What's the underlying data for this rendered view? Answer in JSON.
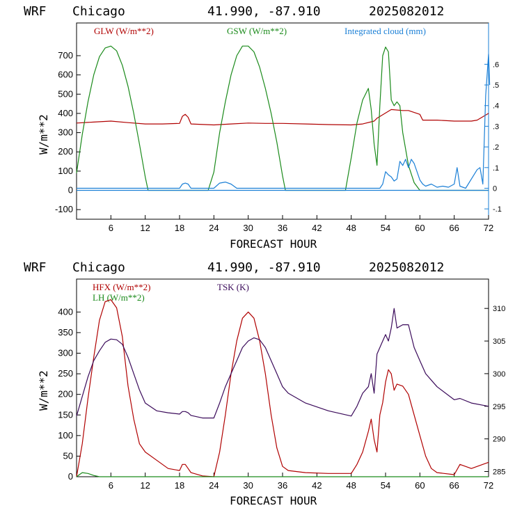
{
  "panels": [
    {
      "header": {
        "model": "WRF",
        "station": "Chicago",
        "coords": "41.990, -87.910",
        "init": "2025082012"
      },
      "legend": [
        {
          "label": "GLW (W/m**2)",
          "color": "#b00000"
        },
        {
          "label": "GSW (W/m**2)",
          "color": "#1a8a1a"
        },
        {
          "label": "Integrated cloud (mm)",
          "color": "#1a7fd6"
        }
      ],
      "xlabel": "FORECAST HOUR",
      "ylabel": "W/m**2",
      "xticks": [
        "6",
        "12",
        "18",
        "24",
        "30",
        "36",
        "42",
        "48",
        "54",
        "60",
        "66",
        "72"
      ],
      "yticks_left": [
        "-100",
        "0",
        "100",
        "200",
        "300",
        "400",
        "500",
        "600",
        "700"
      ],
      "yticks_right": [
        "-.1",
        "0",
        ".1",
        ".2",
        ".3",
        ".4",
        ".5",
        ".6"
      ]
    },
    {
      "header": {
        "model": "WRF",
        "station": "Chicago",
        "coords": "41.990, -87.910",
        "init": "2025082012"
      },
      "legend": [
        {
          "label": "HFX (W/m**2)",
          "color": "#b00000"
        },
        {
          "label": "LH  (W/m**2)",
          "color": "#1a8a1a"
        },
        {
          "label": "TSK (K)",
          "color": "#3a0a5a"
        }
      ],
      "xlabel": "FORECAST HOUR",
      "ylabel": "W/m**2",
      "xticks": [
        "6",
        "12",
        "18",
        "24",
        "30",
        "36",
        "42",
        "48",
        "54",
        "60",
        "66",
        "72"
      ],
      "yticks_left": [
        "0",
        "50",
        "100",
        "150",
        "200",
        "250",
        "300",
        "350",
        "400"
      ],
      "yticks_right": [
        "285",
        "290",
        "295",
        "300",
        "305",
        "310"
      ]
    }
  ],
  "chart_data": [
    {
      "type": "line",
      "xlim": [
        0,
        72
      ],
      "ylim": [
        -150,
        870
      ],
      "y2lim": [
        -0.15,
        0.8
      ],
      "series": [
        {
          "name": "GLW (W/m**2)",
          "axis": "left",
          "color": "#b00000",
          "x": [
            0,
            3,
            6,
            9,
            12,
            15,
            18,
            18.5,
            19,
            19.5,
            20,
            24,
            27,
            30,
            33,
            36,
            40,
            44,
            48,
            50,
            52,
            52.5,
            55,
            57,
            58,
            60,
            60.5,
            63,
            66,
            69,
            70,
            72
          ],
          "y": [
            350,
            355,
            360,
            352,
            345,
            345,
            348,
            385,
            395,
            380,
            345,
            340,
            345,
            350,
            348,
            348,
            345,
            342,
            340,
            345,
            360,
            375,
            420,
            415,
            415,
            395,
            365,
            365,
            360,
            360,
            365,
            400
          ]
        },
        {
          "name": "GSW (W/m**2)",
          "axis": "left",
          "color": "#1a8a1a",
          "x": [
            0,
            1,
            2,
            3,
            4,
            5,
            6,
            7,
            8,
            9,
            10,
            11,
            12,
            12.5,
            23,
            24,
            25,
            26,
            27,
            28,
            29,
            30,
            31,
            32,
            33,
            34,
            35,
            36,
            36.5,
            47,
            48,
            49,
            50,
            51,
            51.5,
            52,
            52.5,
            53,
            53.5,
            54,
            54.5,
            55,
            55.5,
            56,
            56.5,
            57,
            58,
            59,
            60,
            72
          ],
          "y": [
            90,
            290,
            460,
            600,
            695,
            740,
            750,
            725,
            650,
            540,
            400,
            240,
            70,
            0,
            0,
            95,
            300,
            460,
            600,
            700,
            750,
            750,
            720,
            640,
            530,
            400,
            250,
            75,
            0,
            0,
            170,
            350,
            470,
            530,
            420,
            240,
            130,
            440,
            700,
            745,
            720,
            470,
            440,
            460,
            440,
            300,
            130,
            40,
            0,
            0
          ]
        },
        {
          "name": "Integrated cloud (mm)",
          "axis": "right",
          "color": "#1a7fd6",
          "x": [
            0,
            18,
            18.5,
            19,
            19.5,
            20,
            24,
            25,
            26,
            27,
            28,
            53,
            53.5,
            54,
            54.5,
            55,
            55.5,
            56,
            56.5,
            57,
            57.5,
            58,
            58.5,
            59,
            59.5,
            60,
            60.5,
            61,
            62,
            63,
            64,
            65,
            66,
            66.5,
            67,
            67.5,
            68,
            70,
            70.5,
            71,
            71.5,
            72,
            72.2
          ],
          "y": [
            0,
            0,
            0.02,
            0.025,
            0.02,
            0,
            0,
            0.025,
            0.03,
            0.02,
            0,
            0,
            0.02,
            0.08,
            0.065,
            0.055,
            0.035,
            0.045,
            0.13,
            0.11,
            0.14,
            0.1,
            0.14,
            0.12,
            0.08,
            0.04,
            0.02,
            0.01,
            0.02,
            0.005,
            0.01,
            0.005,
            0.02,
            0.1,
            0.01,
            0.005,
            0,
            0.09,
            0.1,
            0.02,
            0.45,
            0.65,
            0.5
          ]
        }
      ]
    },
    {
      "type": "line",
      "xlim": [
        0,
        72
      ],
      "ylim": [
        0,
        480
      ],
      "y2lim": [
        284.2,
        314.5
      ],
      "series": [
        {
          "name": "HFX (W/m**2)",
          "axis": "left",
          "color": "#b00000",
          "x": [
            0,
            1,
            2,
            3,
            4,
            5,
            6,
            7,
            8,
            9,
            10,
            11,
            12,
            14,
            16,
            18,
            18.5,
            19,
            19.5,
            20,
            22,
            24,
            25,
            26,
            27,
            28,
            29,
            30,
            31,
            32,
            33,
            34,
            35,
            36,
            37,
            40,
            44,
            48,
            49,
            50,
            51,
            51.5,
            52,
            52.5,
            53,
            53.5,
            54,
            54.5,
            55,
            55.5,
            56,
            57,
            58,
            59,
            60,
            61,
            62,
            63,
            66,
            67,
            69,
            72
          ],
          "y": [
            0,
            80,
            190,
            290,
            380,
            425,
            430,
            410,
            340,
            220,
            140,
            80,
            60,
            40,
            20,
            15,
            30,
            30,
            20,
            10,
            2,
            0,
            60,
            150,
            250,
            330,
            385,
            400,
            385,
            330,
            250,
            150,
            70,
            25,
            15,
            10,
            8,
            8,
            30,
            60,
            110,
            140,
            90,
            60,
            150,
            180,
            230,
            260,
            250,
            210,
            225,
            220,
            200,
            150,
            100,
            50,
            20,
            10,
            5,
            30,
            20,
            35
          ]
        },
        {
          "name": "LH  (W/m**2)",
          "axis": "left",
          "color": "#1a8a1a",
          "x": [
            0,
            0.5,
            1,
            2,
            3,
            4,
            72
          ],
          "y": [
            0,
            5,
            10,
            8,
            3,
            0,
            0
          ]
        },
        {
          "name": "TSK (K)",
          "axis": "right",
          "color": "#3a0a5a",
          "x": [
            0,
            1,
            2,
            3,
            4,
            5,
            6,
            7,
            8,
            9,
            10,
            11,
            12,
            14,
            16,
            18,
            18.5,
            19,
            19.5,
            20,
            22,
            24,
            25,
            26,
            27,
            28,
            29,
            30,
            31,
            32,
            33,
            34,
            35,
            36,
            37,
            40,
            44,
            48,
            49,
            50,
            51,
            51.5,
            52,
            52.5,
            53,
            53.5,
            54,
            54.5,
            55,
            55.5,
            56,
            57,
            58,
            59,
            60,
            61,
            62,
            63,
            66,
            67,
            69,
            72
          ],
          "y": [
            293.5,
            296.5,
            299.5,
            302,
            303.5,
            304.8,
            305.3,
            305.2,
            304.5,
            302.5,
            300,
            297.5,
            295.5,
            294.3,
            294,
            293.8,
            294.2,
            294.2,
            294,
            293.6,
            293.2,
            293.2,
            295.5,
            298,
            300,
            302,
            304,
            305,
            305.5,
            305.2,
            304,
            302,
            300,
            298,
            297,
            295.5,
            294.3,
            293.5,
            295,
            297,
            298,
            300,
            297,
            303,
            304,
            305,
            306,
            305,
            307,
            310,
            307,
            307.5,
            307.5,
            304,
            302,
            300,
            299,
            298,
            296,
            296.2,
            295.5,
            295
          ]
        }
      ]
    }
  ]
}
